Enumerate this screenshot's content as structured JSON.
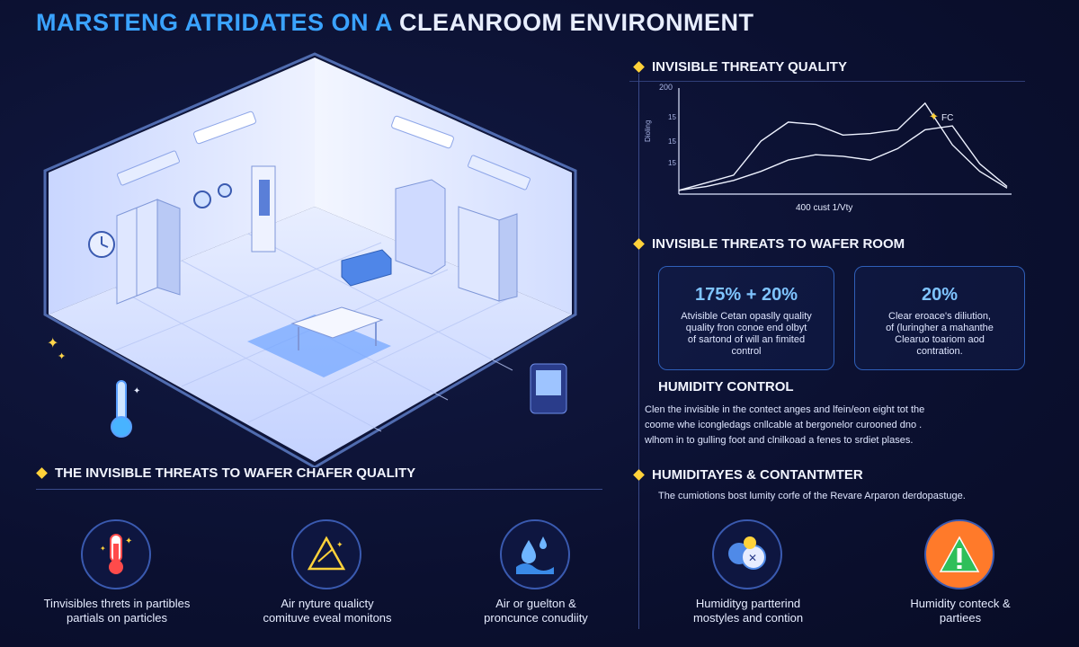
{
  "title": {
    "highlight": "MARSTENG ATRIDATES ON A",
    "rest": "CLEANROOM ENVIRONMENT"
  },
  "chart_section": {
    "heading": "INVISIBLE THREATY QUALITY",
    "y_top_label": "200",
    "y_ticks": [
      "15",
      "15",
      "15"
    ],
    "y_axis_label": "Dioling",
    "x_label": "400 cust 1/Vty",
    "legend_label": "FC",
    "chart_data": {
      "type": "line",
      "x": [
        0,
        1,
        2,
        3,
        4,
        5,
        6,
        7,
        8,
        9,
        10,
        11,
        12
      ],
      "series": [
        {
          "values": [
            5,
            15,
            25,
            70,
            95,
            92,
            78,
            80,
            85,
            120,
            65,
            30,
            8
          ]
        },
        {
          "values": [
            5,
            10,
            18,
            30,
            45,
            52,
            50,
            45,
            60,
            85,
            90,
            40,
            10
          ]
        }
      ],
      "ylim": [
        0,
        140
      ]
    }
  },
  "threats_section": {
    "heading": "INVISIBLE THREATS TO WAFER ROOM",
    "cards": [
      {
        "value": "175% + 20%",
        "desc": [
          "Atvisible Cetan opaslly quality",
          "quality fron conoe end olbyt",
          "of sartond of will an fimited",
          "control"
        ]
      },
      {
        "value": "20%",
        "desc": [
          "Clear eroace's diliution,",
          "of (luringher a mahanthe",
          "Clearuo toariom aod",
          "contration."
        ]
      }
    ]
  },
  "humidity_section": {
    "heading": "HUMIDITY CONTROL",
    "lines": [
      "Clen the invisible in the contect anges and lfein/eon eight tot the",
      "coome whe icongledags cnllcable at bergonelor curooned dno .",
      "wlhom in to gulling foot and clnilkoad a fenes to srdiet plases."
    ]
  },
  "contaminant_section": {
    "heading": "HUMIDITAYES & CONTANTMTER",
    "text": "The cumiotions bost lumity corfe of the Revare Arparon derdopastuge."
  },
  "bottom_left": {
    "heading": "THE INVISIBLE THREATS TO WAFER CHAFER QUALITY",
    "items": [
      {
        "icon": "thermometer-icon",
        "lines": [
          "Tinvisibles threts in partibles",
          "partials on particles"
        ]
      },
      {
        "icon": "warning-icon",
        "lines": [
          "Air nyture qualicty",
          "comituve eveal monitons"
        ]
      },
      {
        "icon": "water-drops-icon",
        "lines": [
          "Air or guelton &",
          "proncunce conudiity"
        ]
      }
    ]
  },
  "bottom_right": {
    "items": [
      {
        "icon": "humidity-particle-icon",
        "lines": [
          "Humidityg partterind",
          "mostyles and contion"
        ]
      },
      {
        "icon": "alert-triangle-icon",
        "lines": [
          "Humidity conteck &",
          "partiees"
        ]
      }
    ]
  },
  "colors": {
    "accent": "#3aa3ff",
    "bullet": "#ffd23a",
    "background": "#0b1030",
    "card_border": "#2f5fb8"
  }
}
